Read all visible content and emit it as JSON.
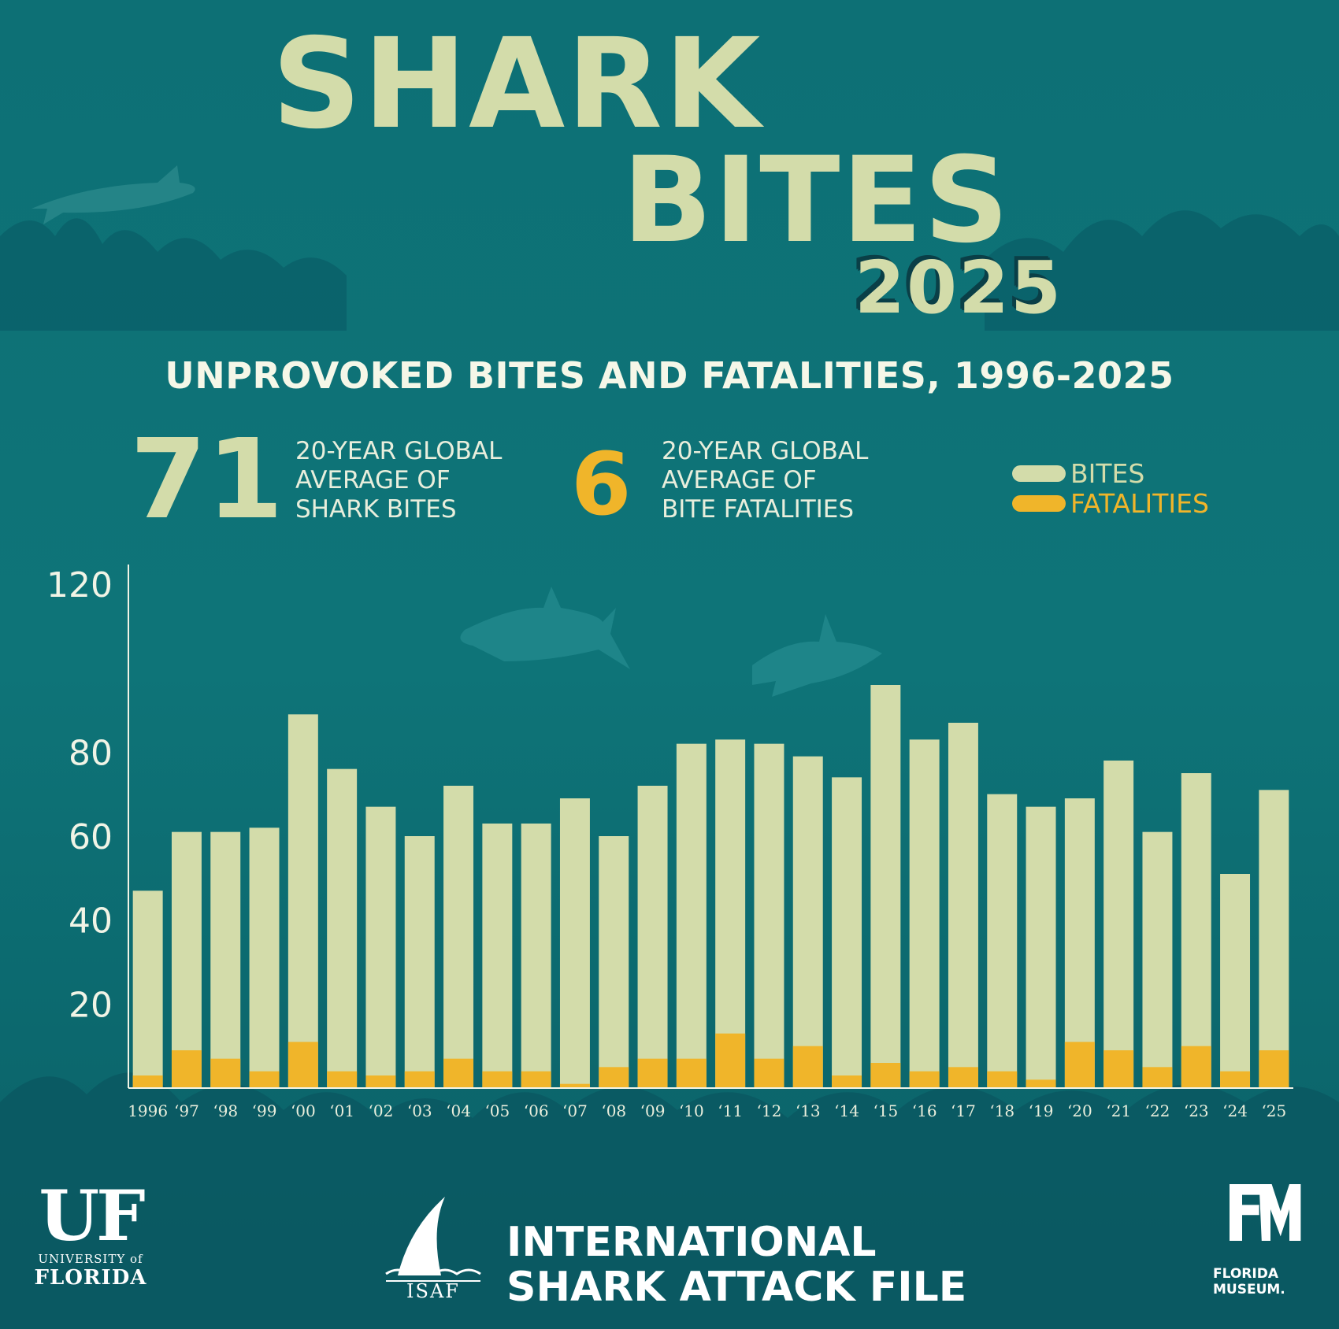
{
  "title": {
    "line1": "SHARK",
    "line2": "BITES",
    "year": "2025"
  },
  "subtitle": "UNPROVOKED BITES AND FATALITIES, 1996-2025",
  "stats": {
    "bites_avg": {
      "value": "71",
      "line1": "20-YEAR GLOBAL",
      "line2": "AVERAGE OF",
      "line3": "SHARK BITES"
    },
    "fatalities_avg": {
      "value": "6",
      "line1": "20-YEAR GLOBAL",
      "line2": "AVERAGE OF",
      "line3": "BITE FATALITIES"
    }
  },
  "legend": {
    "bites": "BITES",
    "fatalities": "FATALITIES"
  },
  "colors": {
    "background": "#0e6f74",
    "bites": "#d3dcaa",
    "fatalities": "#f0b52a",
    "axis": "#f1f4e6"
  },
  "chart_data": {
    "type": "bar",
    "title": "UNPROVOKED BITES AND FATALITIES, 1996-2025",
    "xlabel": "",
    "ylabel": "",
    "ylim": [
      0,
      120
    ],
    "yticks": [
      20,
      40,
      60,
      80,
      120
    ],
    "grid": false,
    "stacked_overlay": true,
    "categories": [
      "1996",
      "‘97",
      "‘98",
      "‘99",
      "‘00",
      "‘01",
      "‘02",
      "‘03",
      "‘04",
      "‘05",
      "‘06",
      "‘07",
      "‘08",
      "‘09",
      "‘10",
      "‘11",
      "‘12",
      "‘13",
      "‘14",
      "‘15",
      "‘16",
      "‘17",
      "‘18",
      "‘19",
      "‘20",
      "‘21",
      "‘22",
      "‘23",
      "‘24",
      "‘25"
    ],
    "series": [
      {
        "name": "BITES",
        "values": [
          47,
          61,
          61,
          62,
          89,
          76,
          67,
          60,
          72,
          63,
          63,
          69,
          60,
          72,
          82,
          83,
          82,
          79,
          74,
          96,
          83,
          87,
          70,
          67,
          69,
          78,
          61,
          75,
          51,
          71
        ]
      },
      {
        "name": "FATALITIES",
        "values": [
          3,
          9,
          7,
          4,
          11,
          4,
          3,
          4,
          7,
          4,
          4,
          1,
          5,
          7,
          7,
          13,
          7,
          10,
          3,
          6,
          4,
          5,
          4,
          2,
          11,
          9,
          5,
          10,
          4,
          9
        ]
      }
    ]
  },
  "footer": {
    "uf_mark": "UF",
    "uf_line1": "UNIVERSITY of",
    "uf_line2": "FLORIDA",
    "isaf_abbr": "ISAF",
    "isaf_line1": "INTERNATIONAL",
    "isaf_line2": "SHARK ATTACK FILE",
    "fm_line1": "FLORIDA",
    "fm_line2": "MUSEUM."
  }
}
